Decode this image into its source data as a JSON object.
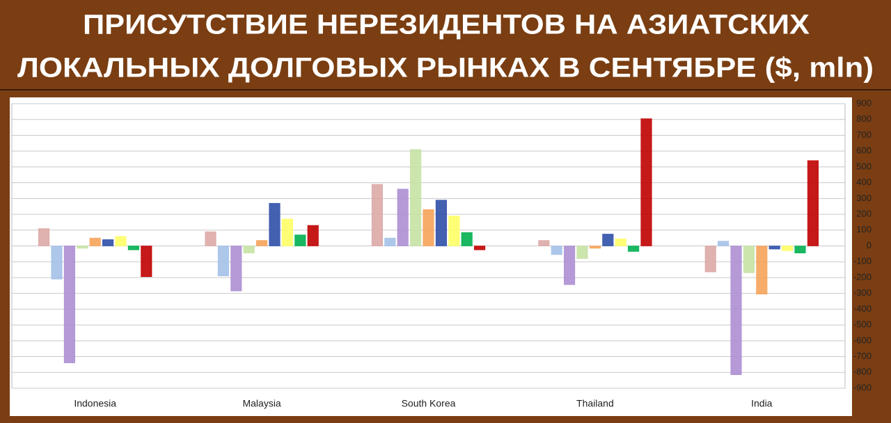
{
  "chart_data": {
    "type": "bar",
    "title": [
      "ПРИСУТСТВИЕ НЕРЕЗИДЕНТОВ НА АЗИАТСКИХ",
      "ЛОКАЛЬНЫХ ДОЛГОВЫХ РЫНКАХ В СЕНТЯБРЕ ($, mln)"
    ],
    "categories": [
      "Indonesia",
      "Malaysia",
      "South Korea",
      "Thailand",
      "India"
    ],
    "series": [
      {
        "color": "#dba9a6",
        "values": [
          110,
          90,
          390,
          35,
          -165
        ]
      },
      {
        "color": "#a3c1e8",
        "values": [
          -210,
          -190,
          50,
          -55,
          30
        ]
      },
      {
        "color": "#ad8fd3",
        "values": [
          -740,
          -285,
          360,
          -245,
          -815
        ]
      },
      {
        "color": "#c6e2a4",
        "values": [
          -15,
          -45,
          610,
          -80,
          -170
        ]
      },
      {
        "color": "#f6a35a",
        "values": [
          50,
          35,
          230,
          -15,
          -305
        ]
      },
      {
        "color": "#2f4fa8",
        "values": [
          40,
          270,
          290,
          75,
          -20
        ]
      },
      {
        "color": "#ffff66",
        "values": [
          60,
          170,
          190,
          45,
          -30
        ]
      },
      {
        "color": "#00b050",
        "values": [
          -25,
          70,
          85,
          -35,
          -45
        ]
      },
      {
        "color": "#c00000",
        "values": [
          -195,
          130,
          -25,
          805,
          540
        ]
      }
    ],
    "ylim": [
      -900,
      900
    ],
    "yticks": [
      -900,
      -800,
      -700,
      -600,
      -500,
      -400,
      -300,
      -200,
      -100,
      0,
      100,
      200,
      300,
      400,
      500,
      600,
      700,
      800,
      900
    ],
    "grid": true
  }
}
